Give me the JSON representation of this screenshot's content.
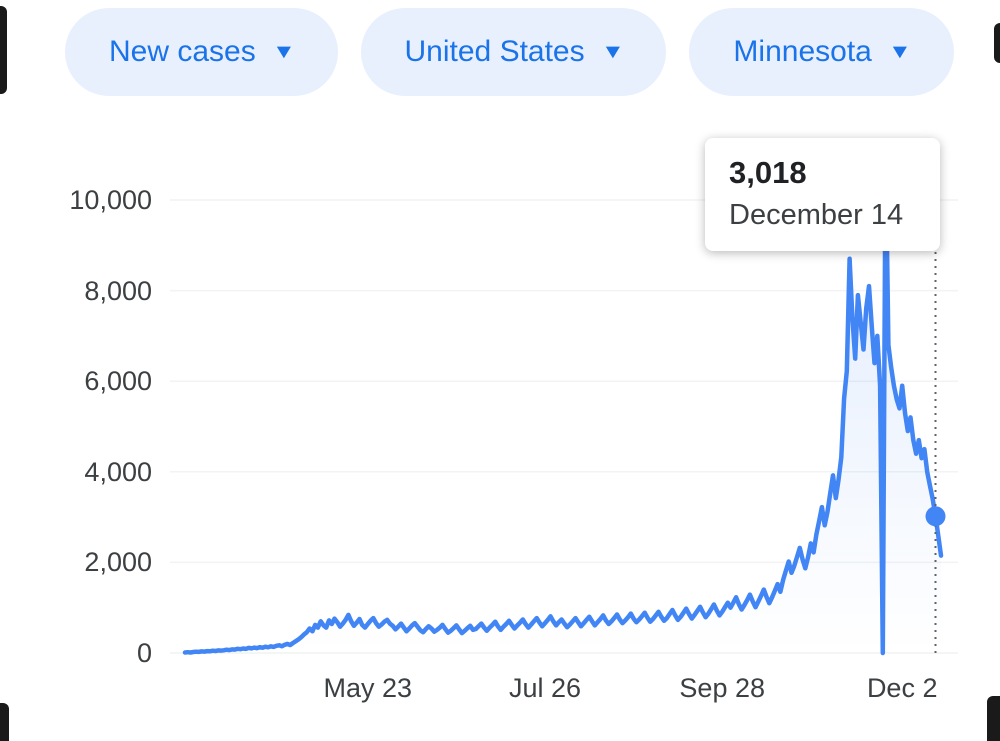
{
  "filters": [
    {
      "label": "New cases"
    },
    {
      "label": "United States"
    },
    {
      "label": "Minnesota"
    }
  ],
  "colors": {
    "line": "#4285f4",
    "dot": "#4285f4",
    "indicator": "#5f6368",
    "pill_bg": "#e8f0fe",
    "pill_text": "#1a73e8",
    "axis_text": "#3c4043"
  },
  "chart_data": {
    "type": "line",
    "title": "New cases (Minnesota, United States)",
    "xlabel": "",
    "ylabel": "",
    "ylim": [
      0,
      10000
    ],
    "grid": "faint",
    "legend": "none",
    "y_ticks": [
      {
        "value": 0,
        "label": "0"
      },
      {
        "value": 2000,
        "label": "2,000"
      },
      {
        "value": 4000,
        "label": "4,000"
      },
      {
        "value": 6000,
        "label": "6,000"
      },
      {
        "value": 8000,
        "label": "8,000"
      },
      {
        "value": 10000,
        "label": "10,000"
      }
    ],
    "x_ticks": [
      {
        "index": 66,
        "label": "May 23"
      },
      {
        "index": 130,
        "label": "Jul 26"
      },
      {
        "index": 194,
        "label": "Sep 28"
      },
      {
        "index": 259,
        "label": "Dec 2"
      }
    ],
    "highlight": {
      "index": 271,
      "value": 3018,
      "value_label": "3,018",
      "date_label": "December 14"
    },
    "values": [
      10,
      18,
      12,
      22,
      28,
      24,
      35,
      30,
      42,
      38,
      50,
      45,
      58,
      52,
      60,
      72,
      65,
      80,
      74,
      92,
      84,
      100,
      90,
      112,
      102,
      120,
      108,
      128,
      118,
      138,
      126,
      148,
      134,
      158,
      170,
      150,
      182,
      200,
      176,
      220,
      260,
      300,
      350,
      410,
      460,
      540,
      480,
      620,
      560,
      700,
      610,
      560,
      720,
      640,
      760,
      680,
      580,
      650,
      730,
      840,
      700,
      600,
      670,
      750,
      620,
      560,
      640,
      710,
      770,
      660,
      580,
      630,
      690,
      730,
      650,
      600,
      520,
      580,
      650,
      560,
      480,
      540,
      610,
      660,
      580,
      500,
      460,
      530,
      590,
      540,
      470,
      510,
      560,
      620,
      530,
      450,
      490,
      550,
      610,
      520,
      440,
      490,
      550,
      600,
      510,
      530,
      590,
      650,
      560,
      490,
      560,
      620,
      690,
      590,
      510,
      580,
      640,
      710,
      620,
      540,
      610,
      670,
      740,
      640,
      560,
      630,
      700,
      770,
      670,
      590,
      660,
      730,
      810,
      700,
      610,
      680,
      740,
      650,
      570,
      630,
      700,
      770,
      680,
      590,
      660,
      730,
      800,
      700,
      610,
      680,
      750,
      830,
      720,
      640,
      700,
      770,
      850,
      740,
      660,
      720,
      790,
      870,
      760,
      680,
      740,
      810,
      890,
      780,
      690,
      750,
      830,
      910,
      800,
      710,
      770,
      860,
      950,
      830,
      730,
      800,
      890,
      980,
      860,
      760,
      840,
      930,
      1020,
      900,
      790,
      870,
      970,
      1070,
      940,
      830,
      910,
      1010,
      1110,
      1000,
      1110,
      1230,
      1080,
      960,
      1060,
      1170,
      1290,
      1140,
      1010,
      1130,
      1260,
      1400,
      1240,
      1100,
      1230,
      1370,
      1520,
      1350,
      1620,
      1820,
      2020,
      1770,
      1920,
      2120,
      2320,
      2070,
      1870,
      2120,
      2420,
      2220,
      2620,
      2920,
      3220,
      2820,
      3120,
      3520,
      3920,
      3420,
      3820,
      4320,
      5620,
      6220,
      8703,
      7400,
      6500,
      7900,
      7300,
      6700,
      7600,
      8100,
      7200,
      6400,
      7000,
      5900,
      0,
      11200,
      6800,
      6300,
      5900,
      5600,
      5400,
      5900,
      5300,
      4900,
      5200,
      4700,
      4400,
      4700,
      4300,
      4500,
      4000,
      3700,
      3400,
      3018,
      2600,
      2150
    ]
  }
}
